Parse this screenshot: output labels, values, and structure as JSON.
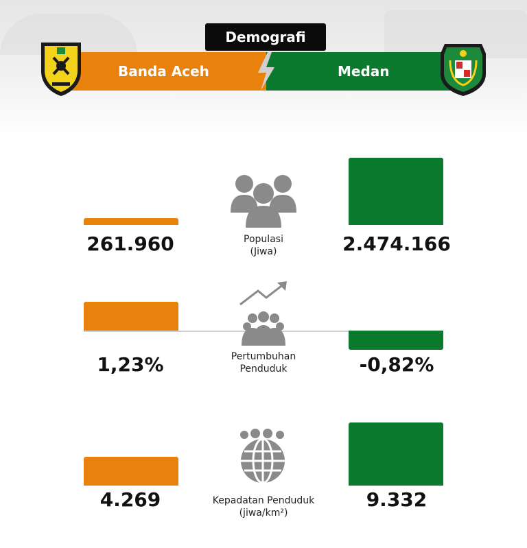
{
  "header": {
    "tag": "Demografi",
    "left_city": "Banda Aceh",
    "right_city": "Medan"
  },
  "colors": {
    "banda_aceh": "#e8820c",
    "medan": "#0b7a2e",
    "icon": "#8a8a8a"
  },
  "chart_data": [
    {
      "type": "bar",
      "categories": [
        "Banda Aceh",
        "Medan"
      ],
      "values": [
        261960,
        2474166
      ],
      "value_labels": [
        "261.960",
        "2.474.166"
      ],
      "label_lines": [
        "Populasi",
        "(Jiwa)"
      ],
      "icon": "people-group-icon"
    },
    {
      "type": "bar",
      "categories": [
        "Banda Aceh",
        "Medan"
      ],
      "values": [
        1.23,
        -0.82
      ],
      "value_labels": [
        "1,23%",
        "-0,82%"
      ],
      "label_lines": [
        "Pertumbuhan",
        "Penduduk"
      ],
      "icon": "population-growth-icon"
    },
    {
      "type": "bar",
      "categories": [
        "Banda Aceh",
        "Medan"
      ],
      "values": [
        4269,
        9332
      ],
      "value_labels": [
        "4.269",
        "9.332"
      ],
      "label_lines": [
        "Kepadatan Penduduk",
        "(jiwa/km²)"
      ],
      "icon": "globe-people-icon"
    }
  ]
}
